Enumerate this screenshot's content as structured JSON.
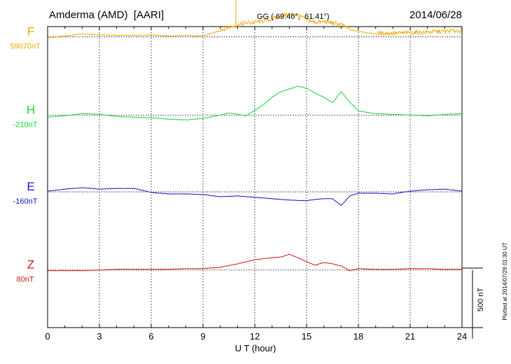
{
  "header": {
    "station": "Amderma (AMD)  [AARI]",
    "coords": "GG ( 69.46°,  61.41°)",
    "date": "2014/06/28"
  },
  "footer": {
    "plotted": "Plotted at 2014/07/29 01:30 UT"
  },
  "colors": {
    "F": "#f5a800",
    "H": "#16d62e",
    "E": "#1414c8",
    "Z": "#d21414",
    "grid": "#000000"
  },
  "chart_data": {
    "type": "line",
    "title": "Amderma (AMD)  [AARI]",
    "xlabel": "U T (hour)",
    "ylabel": "",
    "xlim": [
      0,
      24
    ],
    "xticks": [
      0,
      3,
      6,
      9,
      12,
      15,
      18,
      21,
      24
    ],
    "xtick_labels": [
      "0",
      "3",
      "6",
      "9",
      "12",
      "15",
      "18",
      "21",
      "24"
    ],
    "scale_bar": {
      "label": "500 nT",
      "value_nT": 500
    },
    "ylim_nT_relative": [
      -420,
      1775
    ],
    "grid": true,
    "series": [
      {
        "name": "F",
        "baseline_label": "59070nT",
        "baseline_nT": 1700,
        "x": [
          0,
          1,
          2,
          3,
          4,
          5,
          6,
          7,
          8,
          9,
          10,
          10.5,
          11,
          11.5,
          12,
          12.5,
          13,
          13.5,
          14,
          14.5,
          15,
          15.5,
          16,
          16.5,
          17,
          17.5,
          18,
          18.5,
          19,
          20,
          21,
          22,
          23,
          24
        ],
        "values": [
          -10,
          5,
          20,
          15,
          10,
          10,
          15,
          5,
          10,
          5,
          45,
          65,
          80,
          95,
          100,
          110,
          125,
          145,
          160,
          150,
          120,
          100,
          105,
          95,
          85,
          50,
          40,
          30,
          20,
          20,
          25,
          30,
          35,
          40
        ],
        "spike": {
          "x": 10.9,
          "value": 475
        }
      },
      {
        "name": "H",
        "baseline_label": "-210nT",
        "baseline_nT": 1130,
        "x": [
          0,
          1,
          2,
          3,
          4,
          5,
          6,
          7,
          8,
          9,
          10,
          10.5,
          11,
          11.5,
          12,
          12.5,
          13,
          13.5,
          14,
          14.5,
          15,
          15.5,
          16,
          16.5,
          17,
          17.5,
          18,
          19,
          20,
          21,
          22,
          23,
          24
        ],
        "values": [
          -15,
          -5,
          10,
          5,
          -10,
          -15,
          -20,
          -30,
          -35,
          -25,
          0,
          15,
          5,
          -5,
          35,
          75,
          130,
          170,
          190,
          210,
          195,
          160,
          130,
          90,
          170,
          95,
          30,
          10,
          5,
          0,
          -5,
          5,
          10
        ]
      },
      {
        "name": "E",
        "baseline_label": "-160nT",
        "baseline_nT": 570,
        "x": [
          0,
          1,
          2,
          3,
          4,
          5,
          6,
          7,
          8,
          9,
          10,
          11,
          12,
          13,
          14,
          15,
          15.5,
          16,
          16.5,
          17,
          17.5,
          18,
          19,
          20,
          21,
          22,
          23,
          24
        ],
        "values": [
          5,
          20,
          30,
          20,
          25,
          25,
          -5,
          -15,
          -15,
          -20,
          -35,
          -30,
          -40,
          -50,
          -60,
          -65,
          -55,
          -50,
          -50,
          -100,
          -30,
          -10,
          -10,
          -15,
          5,
          15,
          20,
          5
        ]
      },
      {
        "name": "Z",
        "baseline_label": "80nT",
        "baseline_nT": 0,
        "x": [
          0,
          1,
          2,
          3,
          4,
          5,
          6,
          7,
          8,
          9,
          10,
          11,
          12,
          13,
          13.5,
          14,
          14.5,
          15,
          15.5,
          16,
          16.5,
          17,
          17.5,
          18,
          19,
          20,
          21,
          22,
          23,
          24
        ],
        "values": [
          -5,
          -5,
          -5,
          0,
          5,
          5,
          5,
          5,
          10,
          10,
          20,
          45,
          75,
          90,
          95,
          115,
          90,
          60,
          35,
          55,
          45,
          30,
          -5,
          10,
          5,
          5,
          10,
          10,
          5,
          5
        ]
      }
    ]
  }
}
